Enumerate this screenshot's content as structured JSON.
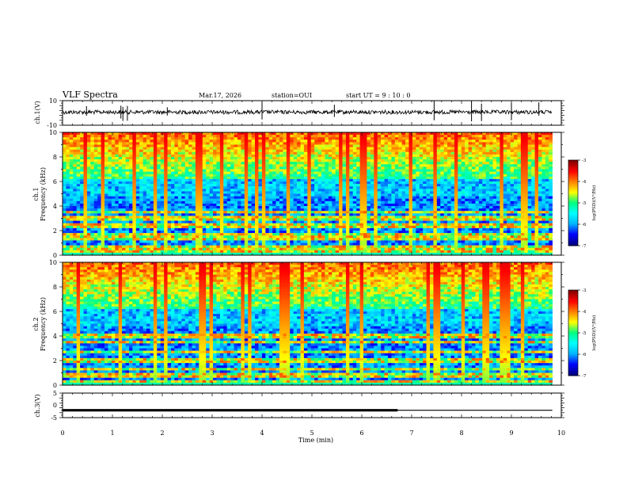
{
  "header": {
    "title": "VLF Spectra",
    "date": "Mar.17, 2026",
    "station": "station=OUI",
    "start_time": "start UT =  9 : 10 : 0"
  },
  "chart_data": [
    {
      "type": "line",
      "name": "ch1-waveform",
      "ylabel": "ch.1(V)",
      "xlim": [
        0,
        10
      ],
      "ylim": [
        -10,
        10
      ],
      "yticks": [
        "10",
        "-10"
      ],
      "baseline": 0,
      "duration_min": 9.82
    },
    {
      "type": "heatmap",
      "name": "ch1-spectrogram",
      "ylabel_top": "ch.1",
      "ylabel": "Frequency (kHz)",
      "xlim": [
        0,
        10
      ],
      "ylim": [
        0,
        10
      ],
      "yticks": [
        "0",
        "2",
        "4",
        "6",
        "8",
        "10"
      ],
      "duration_min": 9.82,
      "colorbar": {
        "label": "log(PSD)(V²/Hz)",
        "range": [
          -7,
          -3
        ],
        "ticks": [
          "-3",
          "-4",
          "-5",
          "-6",
          "-7"
        ]
      }
    },
    {
      "type": "heatmap",
      "name": "ch2-spectrogram",
      "ylabel_top": "ch.2",
      "ylabel": "Frequency (kHz)",
      "xlim": [
        0,
        10
      ],
      "ylim": [
        0,
        10
      ],
      "yticks": [
        "0",
        "2",
        "4",
        "6",
        "8",
        "10"
      ],
      "duration_min": 9.82,
      "colorbar": {
        "label": "log(PSD)(V²/Hz)",
        "range": [
          -7,
          -3
        ],
        "ticks": [
          "-3",
          "-4",
          "-5",
          "-6",
          "-7"
        ]
      }
    },
    {
      "type": "line",
      "name": "ch3-waveform",
      "ylabel": "ch.3(V)",
      "xlim": [
        0,
        10
      ],
      "ylim": [
        -5,
        5
      ],
      "yticks": [
        "5",
        "0",
        "-5"
      ],
      "segments": [
        {
          "x": [
            0,
            6.72
          ],
          "y": -2,
          "style": "thick"
        },
        {
          "x": [
            6.72,
            9.82
          ],
          "y": -2,
          "style": "thin"
        }
      ]
    }
  ],
  "xaxis": {
    "label": "Time (min)",
    "ticks": [
      "0",
      "1",
      "2",
      "3",
      "4",
      "5",
      "6",
      "7",
      "8",
      "9",
      "10"
    ]
  },
  "colors": {
    "colormap": [
      "#000080",
      "#0000ff",
      "#00b4ff",
      "#00ffff",
      "#00ff80",
      "#ffff00",
      "#ff8000",
      "#ff0000",
      "#800000"
    ]
  }
}
